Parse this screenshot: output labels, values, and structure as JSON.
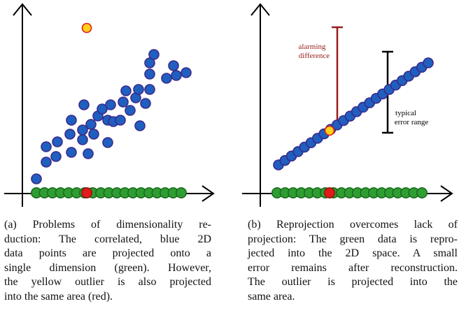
{
  "panels": {
    "a": {
      "caption_lines": [
        "(a) Problems of dimensionality re-",
        "duction: The correlated, blue 2D",
        "data points are projected onto a",
        "single dimension (green). However,",
        "the yellow outlier is also projected",
        "into the same area (red)."
      ]
    },
    "b": {
      "caption_lines": [
        "(b) Reprojection overcomes lack of",
        "projection: The green data is repro-",
        "jected into the 2D space. A small",
        "error remains after reconstruction.",
        "The outlier is projected into the",
        "same area."
      ],
      "annotations": {
        "alarming_line1": "alarming",
        "alarming_line2": "difference",
        "typical_line1": "typical",
        "typical_line2": "error range"
      }
    }
  },
  "colors": {
    "blue_fill": "#1f5fbf",
    "blue_stroke": "#3b2a8a",
    "green_fill": "#2e9e32",
    "green_stroke": "#1d6b20",
    "red_fill": "#e01b1b",
    "yellow_fill": "#ffd21a",
    "outlier_ring": "#e01b1b",
    "alarm_color": "#9a1b1b",
    "axis_color": "#000000"
  }
}
